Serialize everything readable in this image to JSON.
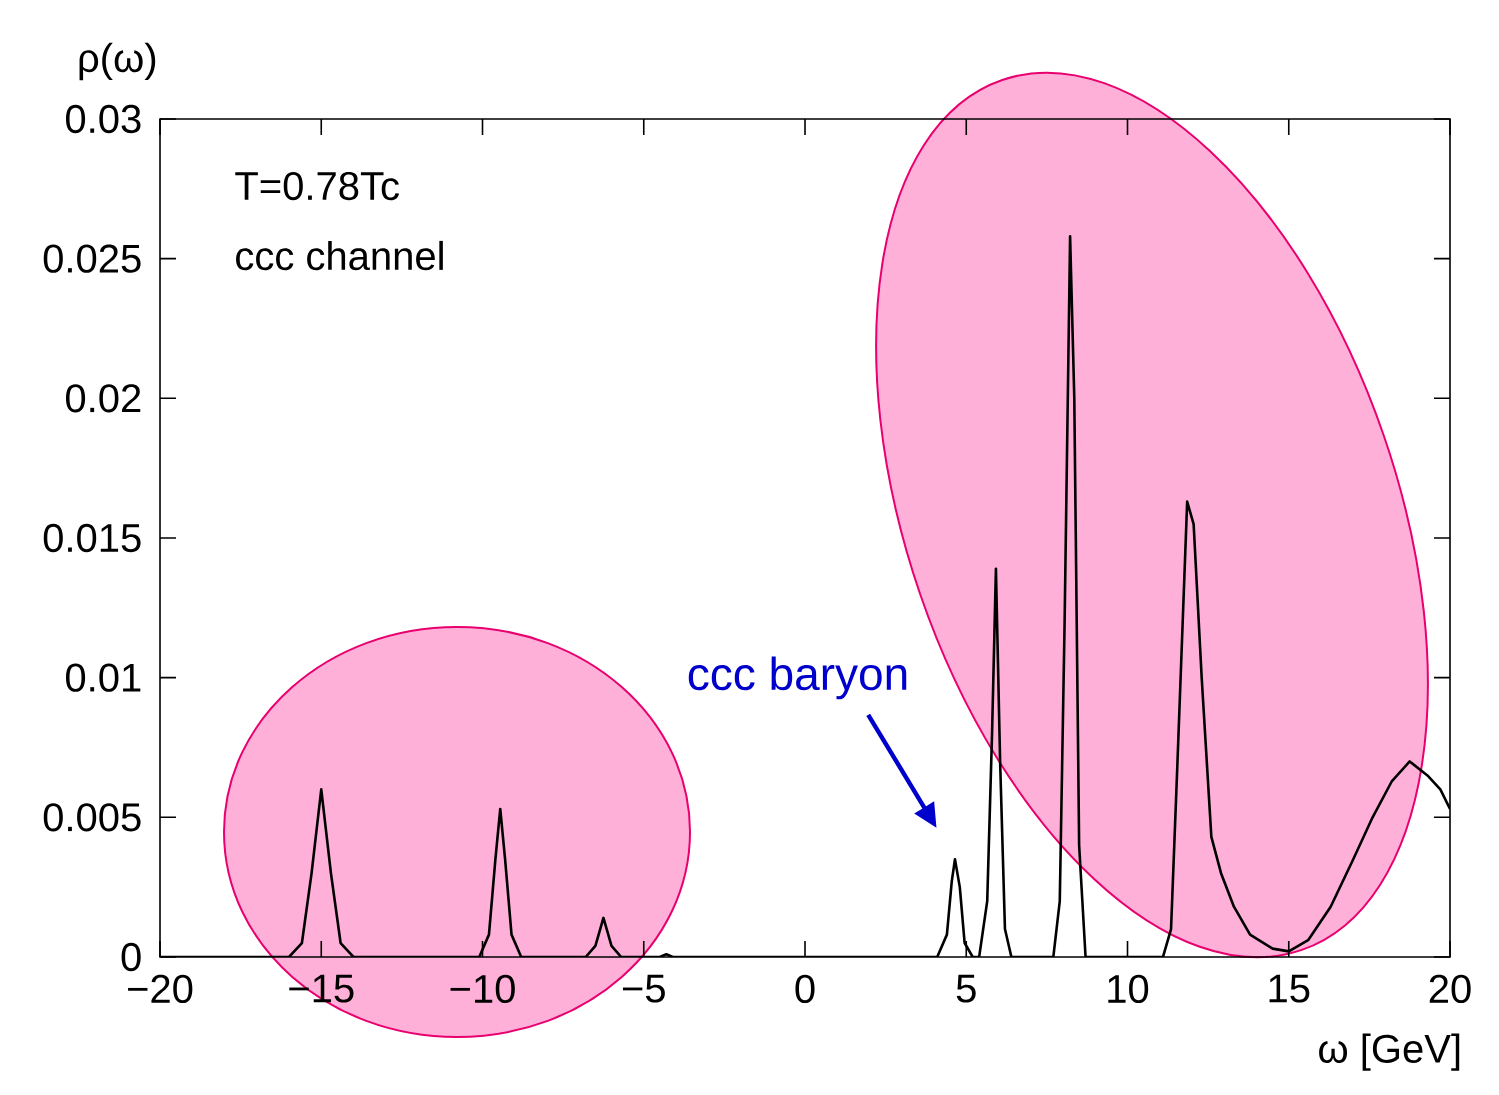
{
  "chart_data": {
    "type": "line",
    "xlabel": "ω [GeV]",
    "ylabel": "ρ(ω)",
    "annotations": [
      "T=0.78Tc",
      "ccc channel",
      "ccc baryon"
    ],
    "xlim": [
      -20,
      20
    ],
    "ylim": [
      0,
      0.03
    ],
    "xticks": [
      {
        "value": -20,
        "label": "−20"
      },
      {
        "value": -15,
        "label": "−15"
      },
      {
        "value": -10,
        "label": "−10"
      },
      {
        "value": -5,
        "label": "−5"
      },
      0,
      5,
      10,
      15,
      20
    ],
    "yticks": [
      0,
      0.005,
      0.01,
      0.015,
      0.02,
      0.025,
      0.03
    ],
    "series": [
      {
        "color": "#000000",
        "x": [
          -20,
          -16,
          -15.6,
          -15.3,
          -15.0,
          -14.7,
          -14.4,
          -14.0,
          -10.1,
          -9.8,
          -9.6,
          -9.45,
          -9.3,
          -9.1,
          -8.8,
          -6.8,
          -6.5,
          -6.25,
          -6.0,
          -5.7,
          -4.5,
          -4.3,
          -4.1,
          4.1,
          4.4,
          4.55,
          4.65,
          4.8,
          4.95,
          5.2,
          5.4,
          5.65,
          5.8,
          5.92,
          6.05,
          6.2,
          6.4,
          7.7,
          7.9,
          8.05,
          8.22,
          8.35,
          8.5,
          8.7,
          11.1,
          11.35,
          11.55,
          11.85,
          12.05,
          12.3,
          12.6,
          12.9,
          13.3,
          13.8,
          14.5,
          15,
          15.6,
          16.3,
          17,
          17.6,
          18.2,
          18.75,
          19.3,
          19.7,
          20
        ],
        "values": [
          0,
          0,
          0.0005,
          0.003,
          0.006,
          0.003,
          0.0005,
          0,
          0,
          0.0008,
          0.0035,
          0.0053,
          0.0035,
          0.0008,
          0,
          0,
          0.0004,
          0.0014,
          0.0004,
          0,
          0,
          0.0001,
          0,
          0,
          0.0008,
          0.0027,
          0.0035,
          0.0025,
          0.0005,
          0,
          0,
          0.002,
          0.008,
          0.0139,
          0.007,
          0.001,
          0,
          0,
          0.002,
          0.012,
          0.0258,
          0.02,
          0.004,
          0,
          0,
          0.001,
          0.007,
          0.0163,
          0.0155,
          0.01,
          0.0043,
          0.003,
          0.0018,
          0.0008,
          0.0003,
          0.0002,
          0.0006,
          0.0018,
          0.0035,
          0.005,
          0.0063,
          0.007,
          0.0065,
          0.006,
          0.0053
        ]
      }
    ]
  }
}
